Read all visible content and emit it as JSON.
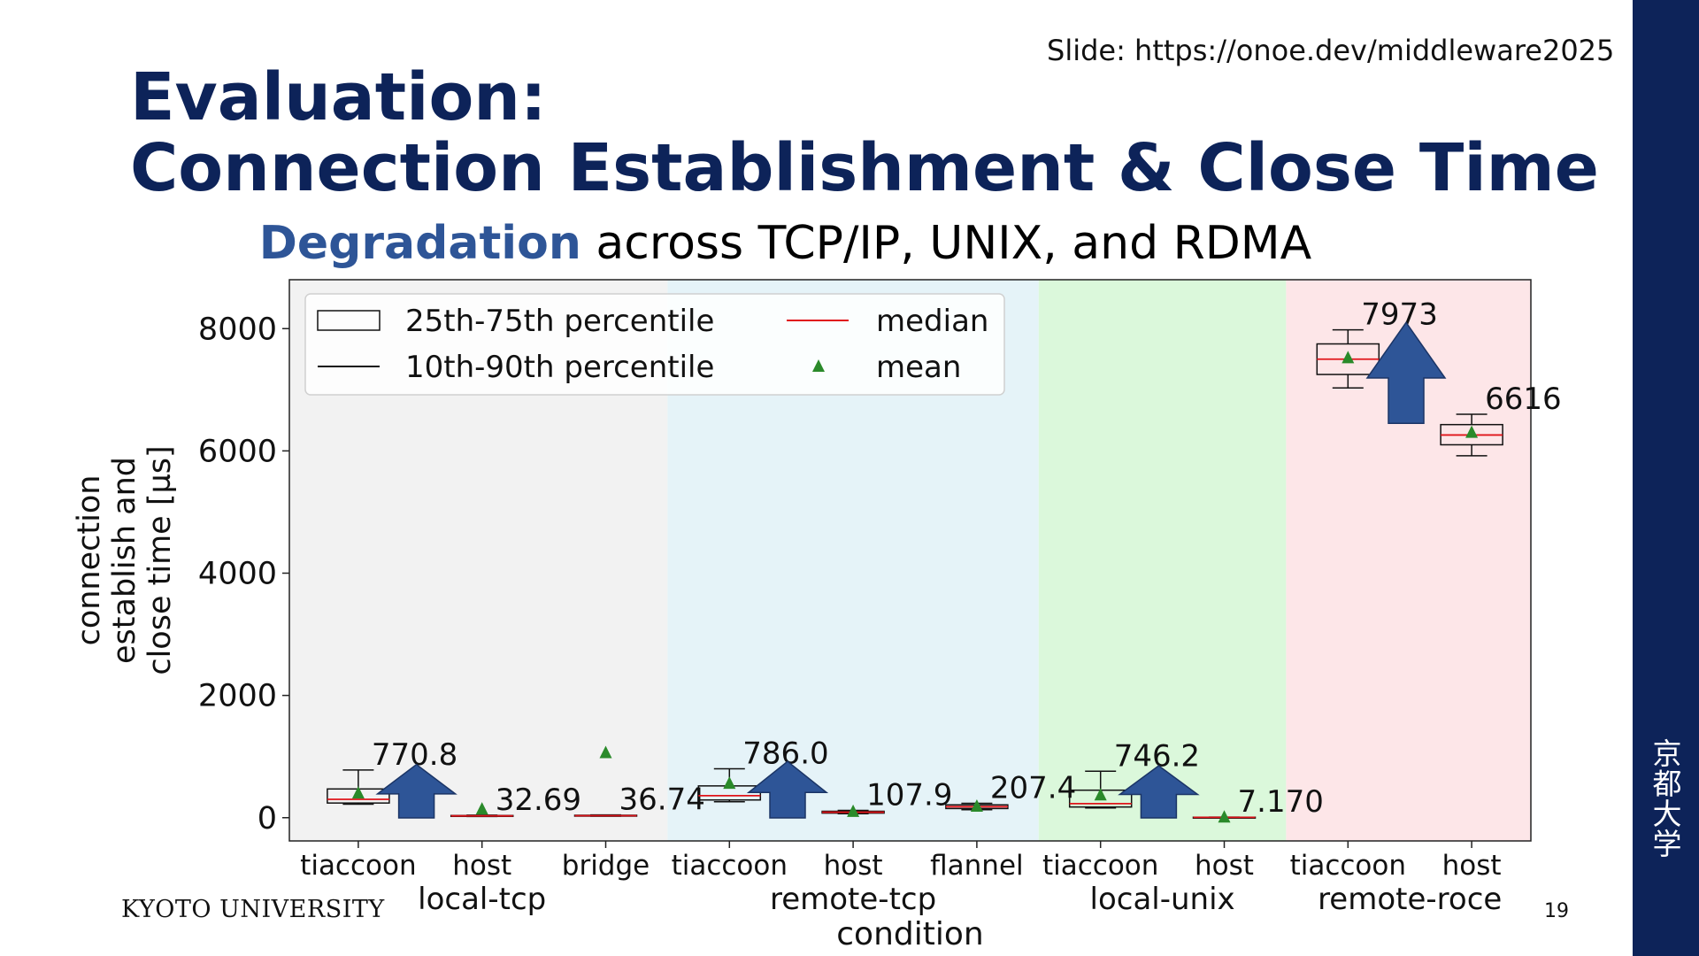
{
  "slide": {
    "url_label": "Slide: https://onoe.dev/middleware2025",
    "title_line1": "Evaluation:",
    "title_line2": "Connection Establishment & Close Time",
    "subtitle_highlight": "Degradation",
    "subtitle_rest": " across TCP/IP, UNIX, and RDMA",
    "footer_logo": "KYOTO UNIVERSITY",
    "page_number": "19",
    "kanji": [
      "京",
      "都",
      "大",
      "学"
    ]
  },
  "colors": {
    "brand": "#0d2359",
    "highlight": "#2e5597",
    "arrow": "#2e5597",
    "median": "#e0141a",
    "mean": "#2a8a2a",
    "group_local_tcp": "#f2f2f2",
    "group_remote_tcp": "#e5f3f8",
    "group_local_unix": "#dbf8db",
    "group_remote_roce": "#fde6e8"
  },
  "chart_data": {
    "type": "box",
    "xlabel": "condition",
    "ylabel_lines": [
      "connection",
      "establish and",
      "close time [µs]"
    ],
    "ylim": [
      -380,
      8800
    ],
    "yticks": [
      0,
      2000,
      4000,
      6000,
      8000
    ],
    "legend_position": "top-left",
    "legend": [
      {
        "label": "25th-75th percentile",
        "kind": "box"
      },
      {
        "label": "10th-90th percentile",
        "kind": "line"
      },
      {
        "label": "median",
        "kind": "median"
      },
      {
        "label": "mean",
        "kind": "mean"
      }
    ],
    "groups": [
      {
        "name": "local-tcp",
        "bg": "#f2f2f2",
        "categories": [
          {
            "label": "tiaccoon",
            "p10": 220,
            "p25": 240,
            "median": 300,
            "p75": 470,
            "p90": 780,
            "mean": 400,
            "annotation": "770.8",
            "arrow": true
          },
          {
            "label": "host",
            "p10": 20,
            "p25": 25,
            "median": 30,
            "p75": 36,
            "p90": 42,
            "mean": 140,
            "annotation": "32.69",
            "arrow": false
          },
          {
            "label": "bridge",
            "p10": 25,
            "p25": 28,
            "median": 33,
            "p75": 40,
            "p90": 46,
            "mean": 1060,
            "annotation": "36.74",
            "arrow": false
          }
        ]
      },
      {
        "name": "remote-tcp",
        "bg": "#e5f3f8",
        "categories": [
          {
            "label": "tiaccoon",
            "p10": 260,
            "p25": 290,
            "median": 360,
            "p75": 520,
            "p90": 800,
            "mean": 560,
            "annotation": "786.0",
            "arrow": true
          },
          {
            "label": "host",
            "p10": 65,
            "p25": 75,
            "median": 90,
            "p75": 105,
            "p90": 120,
            "mean": 100,
            "annotation": "107.9",
            "arrow": false
          },
          {
            "label": "flannel",
            "p10": 130,
            "p25": 150,
            "median": 180,
            "p75": 210,
            "p90": 235,
            "mean": 185,
            "annotation": "207.4",
            "arrow": false
          }
        ]
      },
      {
        "name": "local-unix",
        "bg": "#dbf8db",
        "categories": [
          {
            "label": "tiaccoon",
            "p10": 160,
            "p25": 175,
            "median": 230,
            "p75": 450,
            "p90": 760,
            "mean": 370,
            "annotation": "746.2",
            "arrow": true
          },
          {
            "label": "host",
            "p10": 3,
            "p25": 4,
            "median": 6,
            "p75": 8,
            "p90": 10,
            "mean": 8,
            "annotation": "7.170",
            "arrow": false
          }
        ]
      },
      {
        "name": "remote-roce",
        "bg": "#fde6e8",
        "categories": [
          {
            "label": "tiaccoon",
            "p10": 7030,
            "p25": 7250,
            "median": 7500,
            "p75": 7750,
            "p90": 7980,
            "mean": 7520,
            "annotation": "7973",
            "arrow": true
          },
          {
            "label": "host",
            "p10": 5920,
            "p25": 6100,
            "median": 6260,
            "p75": 6430,
            "p90": 6600,
            "mean": 6300,
            "annotation": "6616",
            "arrow": false
          }
        ]
      }
    ]
  }
}
